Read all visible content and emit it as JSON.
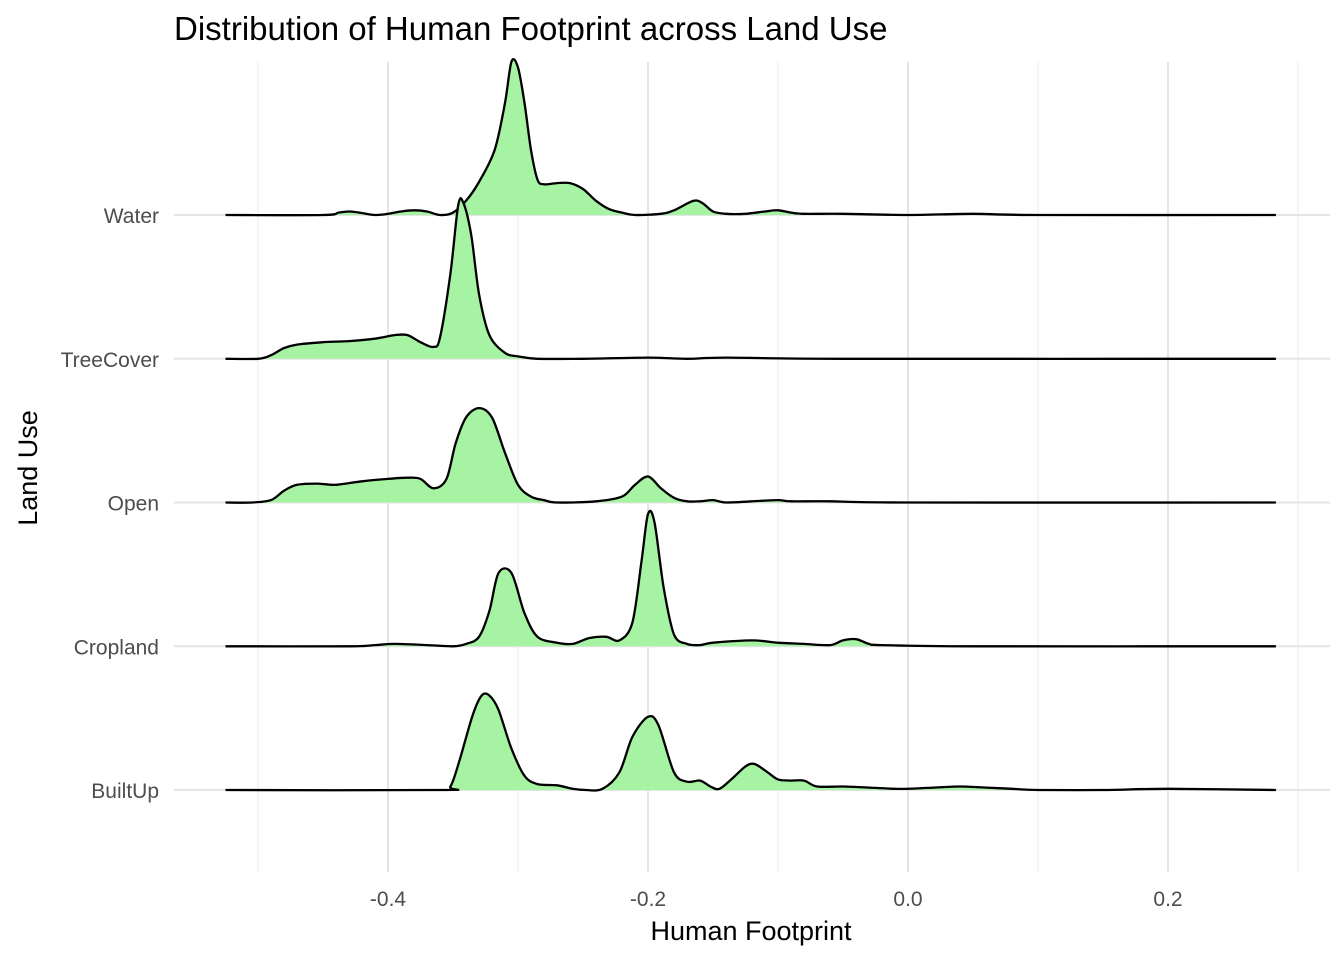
{
  "chart_data": {
    "type": "ridgeline",
    "title": "Distribution of Human Footprint across Land Use",
    "xlabel": "Human Footprint",
    "ylabel": "Land Use",
    "xlim": [
      -0.5,
      0.3
    ],
    "x_ticks": [
      -0.4,
      -0.2,
      0.0,
      0.2
    ],
    "x_tick_labels": [
      "-0.4",
      "-0.2",
      "0.0",
      "0.2"
    ],
    "categories": [
      "BuiltUp",
      "Cropland",
      "Open",
      "TreeCover",
      "Water"
    ],
    "fill_color": "#a6f3a4",
    "line_color": "#000000",
    "grid": true,
    "legend": "none",
    "series": [
      {
        "name": "BuiltUp",
        "points": [
          [
            -0.525,
            0
          ],
          [
            -0.36,
            0
          ],
          [
            -0.352,
            0.03
          ],
          [
            -0.345,
            0.25
          ],
          [
            -0.335,
            0.63
          ],
          [
            -0.328,
            0.8
          ],
          [
            -0.322,
            0.8
          ],
          [
            -0.315,
            0.68
          ],
          [
            -0.305,
            0.35
          ],
          [
            -0.295,
            0.12
          ],
          [
            -0.285,
            0.05
          ],
          [
            -0.27,
            0.04
          ],
          [
            -0.258,
            0.01
          ],
          [
            -0.248,
            0
          ],
          [
            -0.235,
            0.01
          ],
          [
            -0.222,
            0.15
          ],
          [
            -0.212,
            0.45
          ],
          [
            -0.2,
            0.62
          ],
          [
            -0.192,
            0.55
          ],
          [
            -0.18,
            0.15
          ],
          [
            -0.17,
            0.07
          ],
          [
            -0.16,
            0.08
          ],
          [
            -0.152,
            0.03
          ],
          [
            -0.145,
            0.01
          ],
          [
            -0.135,
            0.1
          ],
          [
            -0.125,
            0.2
          ],
          [
            -0.118,
            0.22
          ],
          [
            -0.108,
            0.15
          ],
          [
            -0.1,
            0.09
          ],
          [
            -0.09,
            0.08
          ],
          [
            -0.08,
            0.08
          ],
          [
            -0.07,
            0.03
          ],
          [
            -0.05,
            0.03
          ],
          [
            -0.03,
            0.02
          ],
          [
            -0.01,
            0.01
          ],
          [
            0,
            0.01
          ],
          [
            0.02,
            0.02
          ],
          [
            0.04,
            0.03
          ],
          [
            0.06,
            0.02
          ],
          [
            0.08,
            0.01
          ],
          [
            0.1,
            0
          ],
          [
            0.15,
            0
          ],
          [
            0.2,
            0.01
          ],
          [
            0.283,
            0
          ]
        ]
      },
      {
        "name": "Cropland",
        "points": [
          [
            -0.525,
            0
          ],
          [
            -0.43,
            0
          ],
          [
            -0.41,
            0.01
          ],
          [
            -0.395,
            0.02
          ],
          [
            -0.37,
            0.01
          ],
          [
            -0.35,
            0
          ],
          [
            -0.34,
            0.02
          ],
          [
            -0.33,
            0.08
          ],
          [
            -0.322,
            0.3
          ],
          [
            -0.315,
            0.62
          ],
          [
            -0.305,
            0.62
          ],
          [
            -0.295,
            0.28
          ],
          [
            -0.285,
            0.08
          ],
          [
            -0.27,
            0.03
          ],
          [
            -0.258,
            0.02
          ],
          [
            -0.245,
            0.07
          ],
          [
            -0.232,
            0.08
          ],
          [
            -0.222,
            0.05
          ],
          [
            -0.212,
            0.2
          ],
          [
            -0.205,
            0.72
          ],
          [
            -0.2,
            1.12
          ],
          [
            -0.195,
            1.05
          ],
          [
            -0.188,
            0.5
          ],
          [
            -0.18,
            0.1
          ],
          [
            -0.17,
            0.02
          ],
          [
            -0.16,
            0.01
          ],
          [
            -0.15,
            0.03
          ],
          [
            -0.12,
            0.05
          ],
          [
            -0.1,
            0.03
          ],
          [
            -0.08,
            0.02
          ],
          [
            -0.06,
            0.01
          ],
          [
            -0.05,
            0.05
          ],
          [
            -0.04,
            0.06
          ],
          [
            -0.03,
            0.02
          ],
          [
            -0.02,
            0.01
          ],
          [
            0.05,
            0
          ],
          [
            0.283,
            0
          ]
        ]
      },
      {
        "name": "Open",
        "points": [
          [
            -0.525,
            0
          ],
          [
            -0.505,
            0
          ],
          [
            -0.49,
            0.02
          ],
          [
            -0.48,
            0.1
          ],
          [
            -0.47,
            0.15
          ],
          [
            -0.455,
            0.16
          ],
          [
            -0.44,
            0.15
          ],
          [
            -0.42,
            0.18
          ],
          [
            -0.4,
            0.2
          ],
          [
            -0.385,
            0.21
          ],
          [
            -0.375,
            0.2
          ],
          [
            -0.365,
            0.12
          ],
          [
            -0.355,
            0.2
          ],
          [
            -0.348,
            0.5
          ],
          [
            -0.34,
            0.72
          ],
          [
            -0.33,
            0.8
          ],
          [
            -0.32,
            0.72
          ],
          [
            -0.31,
            0.42
          ],
          [
            -0.3,
            0.15
          ],
          [
            -0.29,
            0.05
          ],
          [
            -0.28,
            0.02
          ],
          [
            -0.27,
            0
          ],
          [
            -0.24,
            0.01
          ],
          [
            -0.22,
            0.05
          ],
          [
            -0.21,
            0.15
          ],
          [
            -0.2,
            0.22
          ],
          [
            -0.19,
            0.12
          ],
          [
            -0.18,
            0.04
          ],
          [
            -0.17,
            0.01
          ],
          [
            -0.16,
            0.01
          ],
          [
            -0.15,
            0.02
          ],
          [
            -0.14,
            0
          ],
          [
            -0.12,
            0.01
          ],
          [
            -0.1,
            0.02
          ],
          [
            -0.09,
            0.01
          ],
          [
            -0.06,
            0.01
          ],
          [
            0,
            0
          ],
          [
            0.283,
            0
          ]
        ]
      },
      {
        "name": "TreeCover",
        "points": [
          [
            -0.525,
            0
          ],
          [
            -0.5,
            0
          ],
          [
            -0.49,
            0.03
          ],
          [
            -0.48,
            0.09
          ],
          [
            -0.47,
            0.12
          ],
          [
            -0.45,
            0.14
          ],
          [
            -0.43,
            0.15
          ],
          [
            -0.41,
            0.17
          ],
          [
            -0.395,
            0.2
          ],
          [
            -0.385,
            0.2
          ],
          [
            -0.375,
            0.14
          ],
          [
            -0.365,
            0.1
          ],
          [
            -0.36,
            0.18
          ],
          [
            -0.352,
            0.72
          ],
          [
            -0.346,
            1.3
          ],
          [
            -0.342,
            1.32
          ],
          [
            -0.336,
            1.05
          ],
          [
            -0.33,
            0.55
          ],
          [
            -0.322,
            0.2
          ],
          [
            -0.31,
            0.05
          ],
          [
            -0.3,
            0.02
          ],
          [
            -0.285,
            0
          ],
          [
            -0.25,
            0
          ],
          [
            -0.2,
            0.01
          ],
          [
            -0.17,
            0
          ],
          [
            -0.14,
            0.01
          ],
          [
            -0.05,
            0
          ],
          [
            0.283,
            0
          ]
        ]
      },
      {
        "name": "Water",
        "points": [
          [
            -0.525,
            0
          ],
          [
            -0.45,
            0
          ],
          [
            -0.438,
            0.02
          ],
          [
            -0.43,
            0.03
          ],
          [
            -0.422,
            0.02
          ],
          [
            -0.41,
            0
          ],
          [
            -0.4,
            0.01
          ],
          [
            -0.39,
            0.03
          ],
          [
            -0.38,
            0.04
          ],
          [
            -0.37,
            0.03
          ],
          [
            -0.36,
            0
          ],
          [
            -0.35,
            0.02
          ],
          [
            -0.34,
            0.12
          ],
          [
            -0.33,
            0.28
          ],
          [
            -0.318,
            0.55
          ],
          [
            -0.31,
            0.95
          ],
          [
            -0.305,
            1.3
          ],
          [
            -0.3,
            1.25
          ],
          [
            -0.295,
            0.95
          ],
          [
            -0.29,
            0.55
          ],
          [
            -0.285,
            0.3
          ],
          [
            -0.28,
            0.26
          ],
          [
            -0.27,
            0.27
          ],
          [
            -0.26,
            0.27
          ],
          [
            -0.25,
            0.22
          ],
          [
            -0.24,
            0.12
          ],
          [
            -0.23,
            0.05
          ],
          [
            -0.22,
            0.02
          ],
          [
            -0.21,
            0
          ],
          [
            -0.19,
            0.01
          ],
          [
            -0.18,
            0.04
          ],
          [
            -0.165,
            0.12
          ],
          [
            -0.158,
            0.1
          ],
          [
            -0.15,
            0.03
          ],
          [
            -0.14,
            0.01
          ],
          [
            -0.125,
            0.01
          ],
          [
            -0.11,
            0.03
          ],
          [
            -0.1,
            0.04
          ],
          [
            -0.09,
            0.02
          ],
          [
            -0.08,
            0.01
          ],
          [
            -0.05,
            0.01
          ],
          [
            0,
            0
          ],
          [
            0.05,
            0.01
          ],
          [
            0.1,
            0
          ],
          [
            0.283,
            0
          ]
        ]
      }
    ]
  }
}
